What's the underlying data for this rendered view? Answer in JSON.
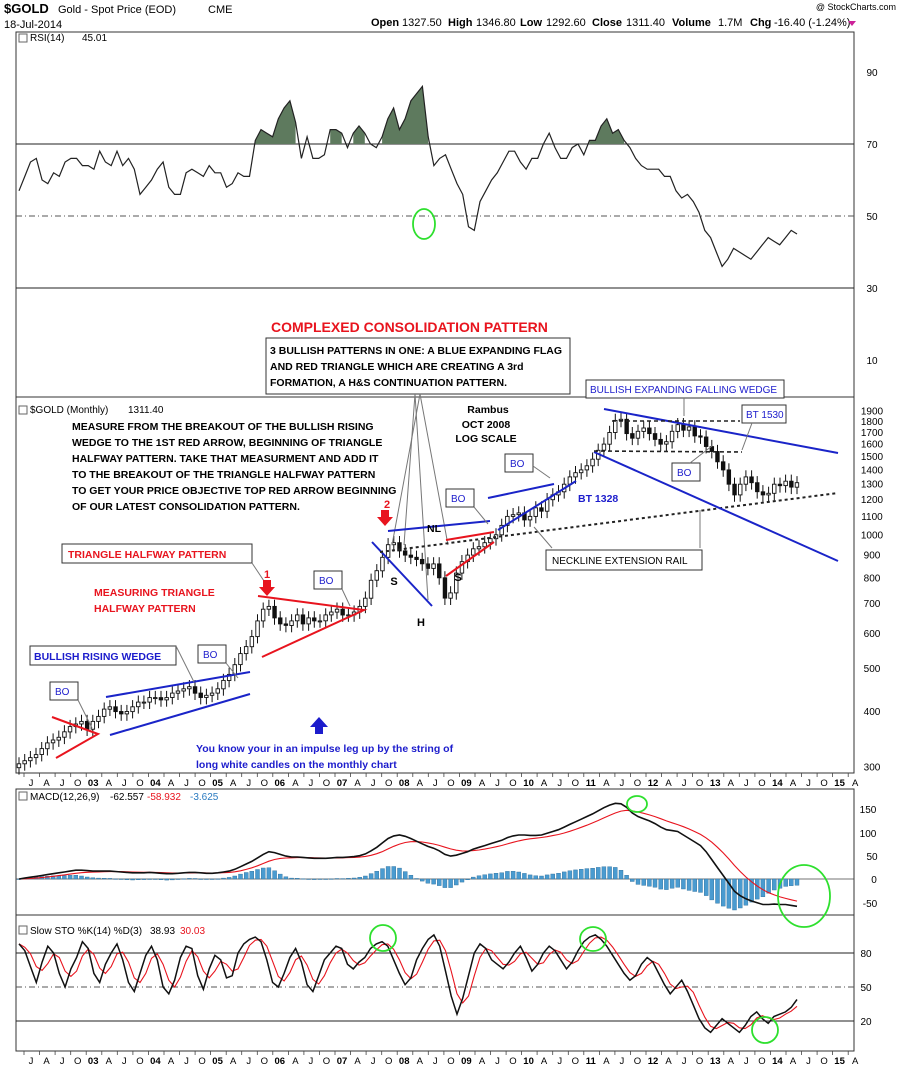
{
  "header": {
    "symbol": "$GOLD",
    "name": "Gold - Spot Price (EOD)",
    "exchange": "CME",
    "date": "18-Jul-2014",
    "ohlc": {
      "open_label": "Open",
      "open": "1327.50",
      "high_label": "High",
      "high": "1346.80",
      "low_label": "Low",
      "low": "1292.60",
      "close_label": "Close",
      "close": "1311.40",
      "volume_label": "Volume",
      "volume": "1.7M",
      "chg_label": "Chg",
      "chg": "-16.40 (-1.24%)"
    },
    "watermark": "@ StockCharts.com"
  },
  "colors": {
    "red": "#e8141e",
    "blue": "#1a24c8",
    "green": "#2ee02e",
    "rsi_fill": "#5e7a5e",
    "hist": "#4a9bd0",
    "navy": "#1c1ccc"
  },
  "axis": {
    "month_letters": [
      "J",
      "A",
      "J",
      "O",
      "03",
      "A",
      "J",
      "O",
      "04",
      "A",
      "J",
      "O",
      "05",
      "A",
      "J",
      "O",
      "06",
      "A",
      "J",
      "O",
      "07",
      "A",
      "J",
      "O",
      "08",
      "A",
      "J",
      "O",
      "09",
      "A",
      "J",
      "O",
      "10",
      "A",
      "J",
      "O",
      "11",
      "A",
      "J",
      "O",
      "12",
      "A",
      "J",
      "O",
      "13",
      "A",
      "J",
      "O",
      "14",
      "A",
      "J",
      "O",
      "15",
      "A"
    ]
  },
  "chart_data": [
    {
      "type": "line",
      "panel": "RSI",
      "legend": {
        "label": "RSI(14)",
        "value": "45.01"
      },
      "ylim": [
        30,
        90
      ],
      "y_ticks": [
        "90",
        "70",
        "50",
        "30",
        "10"
      ],
      "reference_lines": [
        70,
        50,
        30
      ],
      "values": [
        57,
        61,
        65,
        66,
        60,
        59,
        62,
        61,
        65,
        66,
        66,
        64,
        64,
        63,
        68,
        65,
        64,
        68,
        64,
        66,
        63,
        56,
        58,
        60,
        63,
        65,
        58,
        56,
        56,
        62,
        63,
        62,
        61,
        64,
        62,
        62,
        58,
        59,
        62,
        61,
        61,
        71,
        74,
        73,
        72,
        77,
        80,
        82,
        76,
        66,
        72,
        66,
        66,
        67,
        74,
        74,
        73,
        69,
        73,
        75,
        73,
        70,
        69,
        72,
        77,
        80,
        74,
        77,
        82,
        84,
        86,
        72,
        64,
        66,
        67,
        63,
        59,
        56,
        47,
        46,
        54,
        57,
        60,
        62,
        65,
        68,
        68,
        65,
        63,
        66,
        66,
        70,
        73,
        69,
        66,
        66,
        69,
        70,
        67,
        71,
        71,
        75,
        77,
        73,
        74,
        71,
        69,
        66,
        64,
        63,
        63,
        63,
        61,
        61,
        57,
        55,
        56,
        54,
        51,
        46,
        44,
        40,
        36,
        38,
        41,
        40,
        39,
        38,
        40,
        42,
        44,
        43,
        42,
        44,
        46,
        45
      ]
    },
    {
      "type": "candlestick",
      "panel": "price",
      "scale": "log",
      "legend": {
        "label": "$GOLD (Monthly)",
        "value": "1311.40"
      },
      "ylim": [
        290,
        1950
      ],
      "y_ticks": [
        1900,
        1800,
        1700,
        1600,
        1500,
        1400,
        1300,
        1200,
        1100,
        1000,
        900,
        800,
        700,
        600,
        500,
        400,
        300
      ],
      "x": "monthly, Jul 2002 – Jul 2014",
      "close": [
        305,
        310,
        315,
        320,
        330,
        340,
        345,
        350,
        360,
        370,
        375,
        380,
        365,
        380,
        390,
        405,
        410,
        400,
        395,
        400,
        410,
        420,
        420,
        430,
        430,
        425,
        430,
        440,
        445,
        450,
        455,
        440,
        430,
        435,
        440,
        450,
        470,
        485,
        510,
        540,
        560,
        590,
        640,
        680,
        690,
        650,
        630,
        625,
        640,
        660,
        630,
        650,
        640,
        640,
        660,
        670,
        680,
        660,
        660,
        670,
        690,
        720,
        790,
        830,
        890,
        950,
        960,
        920,
        900,
        890,
        880,
        860,
        840,
        860,
        800,
        720,
        740,
        820,
        870,
        900,
        930,
        940,
        960,
        980,
        1000,
        1050,
        1100,
        1110,
        1120,
        1080,
        1100,
        1150,
        1130,
        1200,
        1230,
        1250,
        1300,
        1350,
        1380,
        1400,
        1430,
        1480,
        1550,
        1600,
        1700,
        1810,
        1820,
        1690,
        1650,
        1710,
        1740,
        1690,
        1640,
        1600,
        1620,
        1710,
        1770,
        1720,
        1750,
        1670,
        1660,
        1580,
        1540,
        1460,
        1400,
        1300,
        1230,
        1300,
        1350,
        1310,
        1250,
        1230,
        1240,
        1300,
        1290,
        1320,
        1280,
        1310
      ],
      "annotations": [
        "COMPLEXED CONSOLIDATION PATTERN",
        "3 BULLISH PATTERNS IN ONE:  A BLUE EXPANDING FLAG",
        "AND RED TRIANGLE WHICH ARE CREATING A 3rd",
        "FORMATION, A H&S CONTINUATION PATTERN.",
        "BULLISH EXPANDING FALLING WEDGE",
        "BT 1530",
        "Rambus",
        "OCT 2008",
        "LOG SCALE",
        "MEASURE FROM THE BREAKOUT OF THE BULLISH RISING",
        "WEDGE TO THE 1ST RED ARROW, BEGINNING OF TRIANGLE",
        "HALFWAY PATTERN. TAKE THAT MEASURMENT AND ADD IT",
        "TO THE BREAKOUT OF THE TRIANGLE HALFWAY PATTERN",
        "TO GET YOUR PRICE OBJECTIVE TOP RED ARROW BEGINNING",
        "OF OUR LATEST CONSOLIDATION PATTERN.",
        "TRIANGLE HALFWAY PATTERN",
        "MEASURING TRIANGLE",
        "HALFWAY PATTERN",
        "BULLISH RISING WEDGE",
        "BO",
        "BT 1328",
        "NECKLINE EXTENSION RAIL",
        "NL",
        "S",
        "H",
        "1",
        "2",
        "You know your in an impulse leg up by the string of",
        "long white candles on the monthly chart"
      ]
    },
    {
      "type": "line",
      "panel": "MACD",
      "legend": {
        "label": "MACD(12,26,9)",
        "macd": "-62.557",
        "signal": "-58.932",
        "hist": "-3.625"
      },
      "ylim": [
        -65,
        175
      ],
      "y_ticks": [
        150,
        100,
        50,
        0,
        -50
      ],
      "macd": [
        0,
        2,
        4,
        6,
        8,
        10,
        12,
        14,
        16,
        18,
        20,
        20,
        19,
        18,
        18,
        18,
        18,
        17,
        16,
        15,
        14,
        14,
        14,
        15,
        14,
        13,
        12,
        12,
        13,
        14,
        15,
        15,
        14,
        13,
        13,
        14,
        16,
        18,
        22,
        28,
        34,
        40,
        48,
        56,
        62,
        60,
        56,
        52,
        50,
        50,
        49,
        48,
        47,
        47,
        47,
        48,
        49,
        49,
        50,
        51,
        53,
        57,
        64,
        72,
        82,
        92,
        98,
        100,
        97,
        92,
        86,
        80,
        74,
        70,
        64,
        56,
        52,
        54,
        58,
        62,
        68,
        72,
        76,
        80,
        84,
        88,
        94,
        98,
        100,
        100,
        99,
        99,
        100,
        104,
        108,
        112,
        118,
        124,
        130,
        136,
        142,
        148,
        155,
        162,
        168,
        172,
        171,
        163,
        150,
        142,
        137,
        132,
        126,
        118,
        112,
        110,
        108,
        100,
        92,
        84,
        76,
        62,
        44,
        26,
        8,
        -10,
        -28,
        -38,
        -45,
        -50,
        -54,
        -58,
        -58,
        -57,
        -58,
        -58,
        -60,
        -62
      ]
    },
    {
      "type": "line",
      "panel": "SlowSTO",
      "legend": {
        "label": "Slow STO %K(14) %D(3)",
        "k": "38.93",
        "d": "30.03"
      },
      "ylim": [
        0,
        100
      ],
      "y_ticks": [
        80,
        50,
        20
      ],
      "reference_lines": [
        80,
        50,
        20
      ],
      "k": [
        88,
        82,
        68,
        54,
        72,
        86,
        80,
        62,
        50,
        66,
        76,
        90,
        84,
        62,
        54,
        70,
        80,
        88,
        74,
        54,
        46,
        62,
        78,
        86,
        74,
        50,
        44,
        56,
        76,
        86,
        84,
        60,
        48,
        66,
        78,
        74,
        58,
        60,
        80,
        88,
        92,
        94,
        90,
        74,
        54,
        50,
        62,
        76,
        84,
        72,
        52,
        46,
        60,
        74,
        80,
        86,
        84,
        70,
        66,
        72,
        76,
        84,
        88,
        90,
        86,
        74,
        62,
        52,
        58,
        74,
        84,
        92,
        96,
        86,
        64,
        42,
        26,
        40,
        60,
        80,
        88,
        84,
        74,
        70,
        66,
        72,
        80,
        86,
        76,
        64,
        70,
        80,
        86,
        82,
        74,
        66,
        72,
        82,
        90,
        94,
        96,
        92,
        86,
        78,
        70,
        62,
        56,
        60,
        70,
        76,
        72,
        62,
        52,
        44,
        50,
        56,
        46,
        34,
        22,
        14,
        10,
        16,
        22,
        18,
        14,
        10,
        16,
        24,
        28,
        22,
        18,
        24,
        26,
        28,
        32,
        39
      ]
    }
  ]
}
